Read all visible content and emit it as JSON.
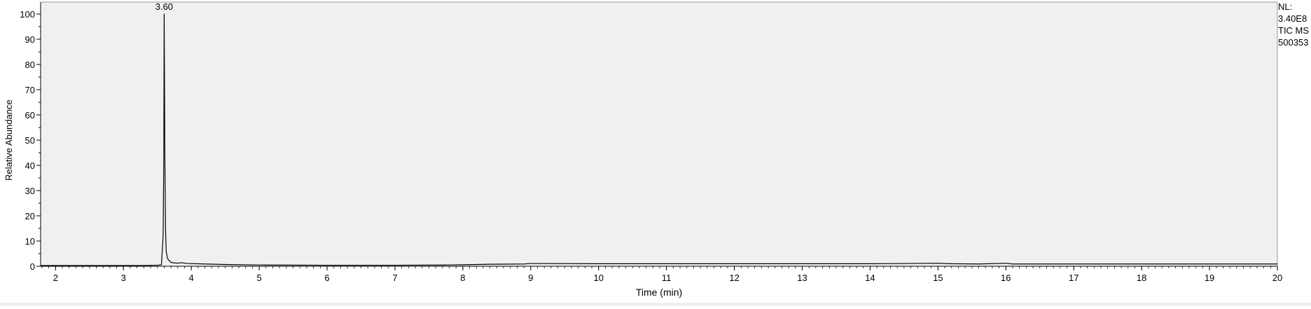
{
  "chart_data": {
    "type": "line",
    "title": "",
    "xlabel": "Time (min)",
    "ylabel": "Relative Abundance",
    "xlim": [
      1.78,
      20.0
    ],
    "ylim": [
      0,
      100
    ],
    "x_ticks": [
      2,
      3,
      4,
      5,
      6,
      7,
      8,
      9,
      10,
      11,
      12,
      13,
      14,
      15,
      16,
      17,
      18,
      19,
      20
    ],
    "x_tick_labels": [
      "2",
      "3",
      "4",
      "5",
      "6",
      "7",
      "8",
      "9",
      "10",
      "11",
      "12",
      "13",
      "14",
      "15",
      "16",
      "17",
      "18",
      "19",
      "20"
    ],
    "y_ticks": [
      0,
      10,
      20,
      30,
      40,
      50,
      60,
      70,
      80,
      90,
      100
    ],
    "y_tick_labels": [
      "0",
      "10",
      "20",
      "30",
      "40",
      "50",
      "60",
      "70",
      "80",
      "90",
      "100"
    ],
    "grid": false,
    "colors": {
      "plot_background": "#f0f0f0",
      "line": "#000000",
      "frame": "#000000"
    },
    "annotations": [
      {
        "text": "3.60",
        "x": 3.6,
        "y": 100
      }
    ],
    "info_text": [
      "NL:",
      "3.40E8",
      "TIC  MS",
      "500353"
    ],
    "series": [
      {
        "points": [
          [
            1.78,
            0.3
          ],
          [
            2.5,
            0.3
          ],
          [
            3.3,
            0.3
          ],
          [
            3.5,
            0.4
          ],
          [
            3.56,
            0.6
          ],
          [
            3.585,
            12
          ],
          [
            3.595,
            45
          ],
          [
            3.6,
            100
          ],
          [
            3.605,
            73
          ],
          [
            3.61,
            45
          ],
          [
            3.62,
            15
          ],
          [
            3.63,
            6
          ],
          [
            3.65,
            3
          ],
          [
            3.7,
            1.5
          ],
          [
            3.8,
            1.2
          ],
          [
            3.85,
            1.4
          ],
          [
            3.95,
            1.1
          ],
          [
            4.2,
            0.9
          ],
          [
            4.5,
            0.7
          ],
          [
            5.0,
            0.5
          ],
          [
            6.0,
            0.4
          ],
          [
            7.0,
            0.4
          ],
          [
            7.8,
            0.5
          ],
          [
            8.0,
            0.6
          ],
          [
            8.4,
            0.8
          ],
          [
            8.9,
            0.9
          ],
          [
            9.0,
            1.1
          ],
          [
            10.0,
            1.0
          ],
          [
            11.0,
            1.0
          ],
          [
            12.0,
            1.0
          ],
          [
            13.0,
            1.0
          ],
          [
            14.0,
            1.0
          ],
          [
            14.5,
            1.1
          ],
          [
            15.0,
            1.2
          ],
          [
            15.2,
            1.0
          ],
          [
            15.6,
            0.9
          ],
          [
            16.0,
            1.2
          ],
          [
            16.1,
            0.9
          ],
          [
            17.0,
            0.9
          ],
          [
            18.0,
            0.9
          ],
          [
            19.0,
            0.9
          ],
          [
            20.0,
            0.9
          ]
        ]
      }
    ]
  }
}
